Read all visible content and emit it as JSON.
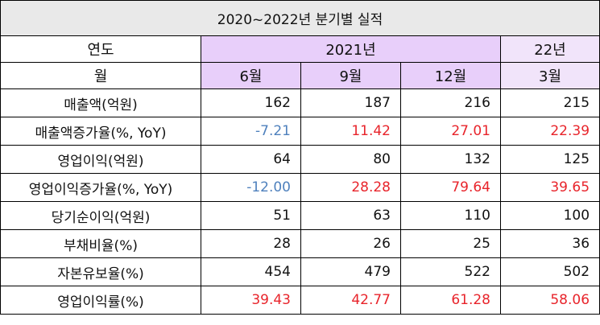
{
  "title": "2020~2022년 분기별 실적",
  "header": {
    "year_label": "연도",
    "year_2021": "2021년",
    "year_22": "22년",
    "month_label": "월",
    "months": [
      "6월",
      "9월",
      "12월",
      "3월"
    ]
  },
  "rows": [
    {
      "label": "매출액(억원)",
      "values": [
        "162",
        "187",
        "216",
        "215"
      ],
      "colors": [
        "black",
        "black",
        "black",
        "black"
      ]
    },
    {
      "label": "매출액증가율(%, YoY)",
      "values": [
        "-7.21",
        "11.42",
        "27.01",
        "22.39"
      ],
      "colors": [
        "blue",
        "red",
        "red",
        "red"
      ]
    },
    {
      "label": "영업이익(억원)",
      "values": [
        "64",
        "80",
        "132",
        "125"
      ],
      "colors": [
        "black",
        "black",
        "black",
        "black"
      ]
    },
    {
      "label": "영업이익증가율(%, YoY)",
      "values": [
        "-12.00",
        "28.28",
        "79.64",
        "39.65"
      ],
      "colors": [
        "blue",
        "red",
        "red",
        "red"
      ]
    },
    {
      "label": "당기순이익(억원)",
      "values": [
        "51",
        "63",
        "110",
        "100"
      ],
      "colors": [
        "black",
        "black",
        "black",
        "black"
      ]
    },
    {
      "label": "부채비율(%)",
      "values": [
        "28",
        "26",
        "25",
        "36"
      ],
      "colors": [
        "black",
        "black",
        "black",
        "black"
      ]
    },
    {
      "label": "자본유보율(%)",
      "values": [
        "454",
        "479",
        "522",
        "502"
      ],
      "colors": [
        "black",
        "black",
        "black",
        "black"
      ]
    },
    {
      "label": "영업이익률(%)",
      "values": [
        "39.43",
        "42.77",
        "61.28",
        "58.06"
      ],
      "colors": [
        "red",
        "red",
        "red",
        "red"
      ]
    }
  ]
}
